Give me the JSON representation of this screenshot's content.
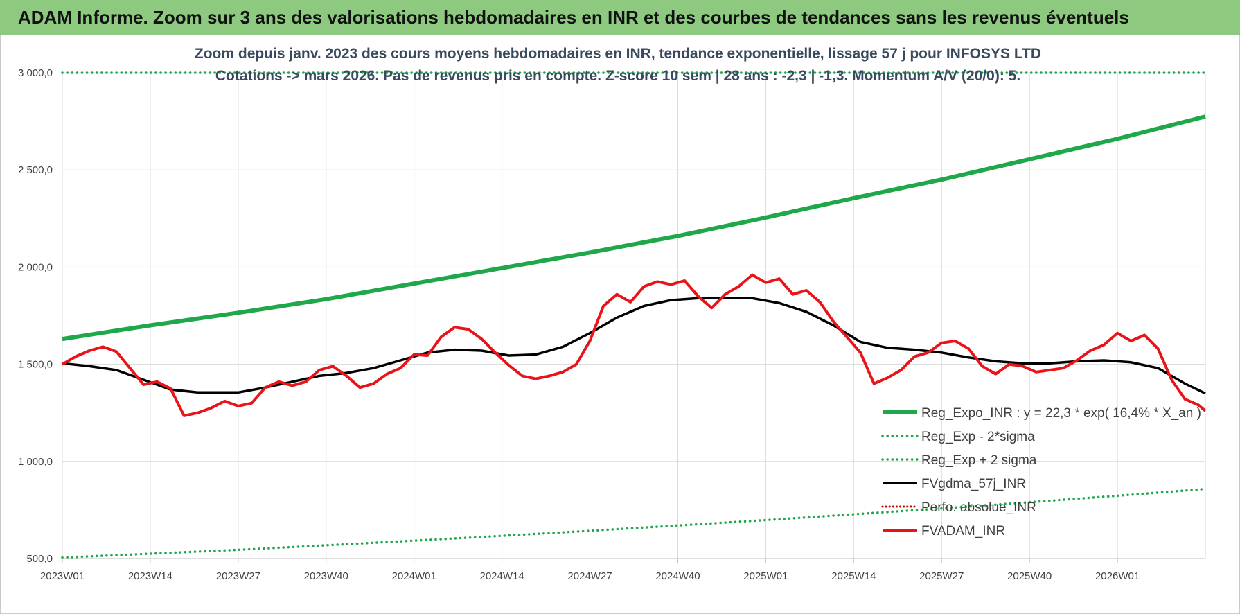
{
  "banner": {
    "title": "ADAM Informe. Zoom sur 3 ans des valorisations hebdomadaires en INR et des courbes de tendances sans les revenus éventuels"
  },
  "colors": {
    "banner_bg": "#8dc97f",
    "trend": "#1fa84a",
    "sigma": "#1fa84a",
    "mma": "#000000",
    "perfo": "#c00000",
    "price": "#e8141a"
  },
  "chart_data": {
    "type": "line",
    "title_line1": "Zoom depuis janv. 2023 des cours moyens hebdomadaires en INR, tendance exponentielle, lissage 57 j pour INFOSYS LTD",
    "title_line2": "Cotations -> mars 2026. Pas de revenus pris en compte. Z-score 10 sem | 28 ans : -2,3 | -1,3. Momentum A/V (20/0): 5.",
    "x_tick_labels": [
      "2023W01",
      "2023W14",
      "2023W27",
      "2023W40",
      "2024W01",
      "2024W14",
      "2024W27",
      "2024W40",
      "2025W01",
      "2025W14",
      "2025W27",
      "2025W40",
      "2026W01"
    ],
    "x_tick_weeks": [
      0,
      13,
      26,
      39,
      52,
      65,
      78,
      91,
      104,
      117,
      130,
      143,
      156
    ],
    "x_range": [
      0,
      169
    ],
    "ylim": [
      500,
      3000
    ],
    "y_ticks": [
      500,
      1000,
      1500,
      2000,
      2500,
      3000
    ],
    "y_tick_labels": [
      "500,0",
      "1 000,0",
      "1 500,0",
      "2 000,0",
      "2 500,0",
      "3 000,0"
    ],
    "grid": true,
    "legend_position": "bottom-right",
    "legend": [
      {
        "label": "Reg_Expo_INR : y = 22,3 * exp( 16,4% *  X_an )",
        "style": "thick-solid",
        "color": "#1fa84a"
      },
      {
        "label": "Reg_Exp - 2*sigma",
        "style": "dotted",
        "color": "#1fa84a"
      },
      {
        "label": "Reg_Exp + 2 sigma",
        "style": "dotted",
        "color": "#1fa84a"
      },
      {
        "label": "FVgdma_57j_INR",
        "style": "solid",
        "color": "#000000"
      },
      {
        "label": "Perfo. absolue_INR",
        "style": "dotted",
        "color": "#c00000"
      },
      {
        "label": "FVADAM_INR",
        "style": "solid",
        "color": "#e8141a"
      }
    ],
    "series": [
      {
        "name": "Reg_Expo_INR : y = 22,3 * exp( 16,4% *  X_an )",
        "x": [
          0,
          13,
          26,
          39,
          52,
          65,
          78,
          91,
          104,
          117,
          130,
          143,
          156,
          169
        ],
        "values": [
          1630,
          1700,
          1765,
          1835,
          1915,
          1995,
          2075,
          2160,
          2255,
          2355,
          2450,
          2555,
          2660,
          2775
        ]
      },
      {
        "name": "Reg_Exp - 2*sigma",
        "x": [
          0,
          13,
          26,
          39,
          52,
          65,
          78,
          91,
          104,
          117,
          130,
          143,
          156,
          169
        ],
        "values": [
          505,
          525,
          545,
          568,
          592,
          617,
          643,
          670,
          698,
          728,
          758,
          790,
          823,
          858
        ]
      },
      {
        "name": "Reg_Exp + 2 sigma",
        "x": [
          0,
          169
        ],
        "values": [
          3000,
          3000
        ]
      },
      {
        "name": "FVgdma_57j_INR",
        "x": [
          0,
          4,
          8,
          12,
          16,
          20,
          26,
          30,
          34,
          38,
          42,
          46,
          50,
          54,
          58,
          62,
          66,
          70,
          74,
          78,
          82,
          86,
          90,
          94,
          98,
          102,
          106,
          110,
          114,
          118,
          122,
          126,
          130,
          134,
          138,
          142,
          146,
          150,
          154,
          158,
          162,
          166,
          169
        ],
        "values": [
          1505,
          1490,
          1470,
          1420,
          1370,
          1355,
          1355,
          1380,
          1410,
          1440,
          1455,
          1480,
          1520,
          1560,
          1575,
          1570,
          1545,
          1550,
          1590,
          1660,
          1740,
          1800,
          1830,
          1840,
          1840,
          1840,
          1815,
          1770,
          1700,
          1615,
          1585,
          1575,
          1560,
          1535,
          1515,
          1505,
          1505,
          1515,
          1520,
          1510,
          1480,
          1400,
          1350
        ]
      },
      {
        "name": "FVADAM_INR",
        "x": [
          0,
          2,
          4,
          6,
          8,
          10,
          12,
          14,
          16,
          18,
          20,
          22,
          24,
          26,
          28,
          30,
          32,
          34,
          36,
          38,
          40,
          42,
          44,
          46,
          48,
          50,
          52,
          54,
          56,
          58,
          60,
          62,
          64,
          66,
          68,
          70,
          72,
          74,
          76,
          78,
          80,
          82,
          84,
          86,
          88,
          90,
          92,
          94,
          96,
          98,
          100,
          102,
          104,
          106,
          108,
          110,
          112,
          114,
          116,
          118,
          120,
          122,
          124,
          126,
          128,
          130,
          132,
          134,
          136,
          138,
          140,
          142,
          144,
          146,
          148,
          150,
          152,
          154,
          156,
          158,
          160,
          162,
          164,
          166,
          168,
          169
        ],
        "values": [
          1500,
          1540,
          1570,
          1590,
          1565,
          1480,
          1395,
          1410,
          1375,
          1235,
          1250,
          1275,
          1310,
          1285,
          1300,
          1380,
          1410,
          1390,
          1410,
          1470,
          1490,
          1440,
          1380,
          1400,
          1450,
          1480,
          1550,
          1545,
          1640,
          1690,
          1680,
          1630,
          1560,
          1495,
          1440,
          1425,
          1440,
          1460,
          1500,
          1620,
          1800,
          1860,
          1820,
          1900,
          1925,
          1910,
          1930,
          1850,
          1790,
          1860,
          1900,
          1960,
          1920,
          1940,
          1860,
          1880,
          1820,
          1720,
          1640,
          1560,
          1400,
          1430,
          1470,
          1540,
          1560,
          1610,
          1620,
          1580,
          1490,
          1450,
          1500,
          1490,
          1460,
          1470,
          1480,
          1520,
          1570,
          1600,
          1660,
          1620,
          1650,
          1580,
          1420,
          1320,
          1290,
          1260
        ]
      }
    ]
  }
}
